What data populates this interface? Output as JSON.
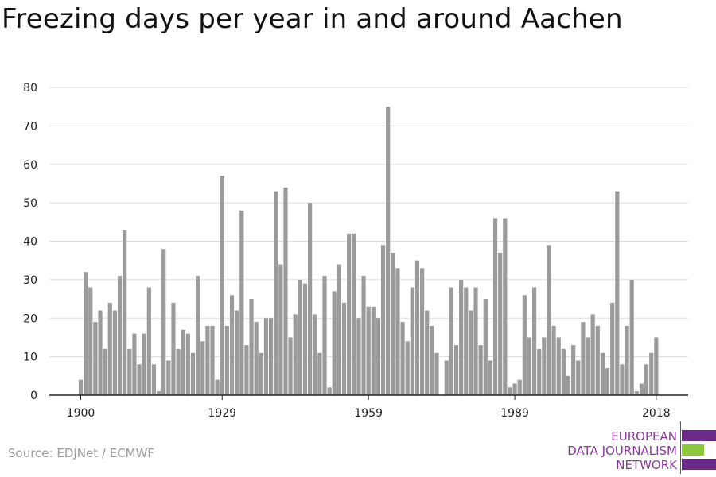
{
  "title": "Freezing days per year in and around Aachen",
  "source": "Source: EDJNet / ECMWF",
  "logo": {
    "lines": [
      "EUROPEAN",
      "DATA JOURNALISM",
      "NETWORK"
    ],
    "colors": {
      "purple": "#6b2a87",
      "green": "#8dc63f"
    }
  },
  "colors": {
    "bar": "#9b9b9b",
    "grid": "#dddddd",
    "axis": "#222222"
  },
  "chart_data": {
    "type": "bar",
    "title": "Freezing days per year in and around Aachen",
    "xlabel": "",
    "ylabel": "",
    "ylim": [
      0,
      80
    ],
    "yticks": [
      0,
      10,
      20,
      30,
      40,
      50,
      60,
      70,
      80
    ],
    "xticks": [
      "1900",
      "1929",
      "1959",
      "1989",
      "2018"
    ],
    "grid": true,
    "categories": [
      1900,
      1901,
      1902,
      1903,
      1904,
      1905,
      1906,
      1907,
      1908,
      1909,
      1910,
      1911,
      1912,
      1913,
      1914,
      1915,
      1916,
      1917,
      1918,
      1919,
      1920,
      1921,
      1922,
      1923,
      1924,
      1925,
      1926,
      1927,
      1928,
      1929,
      1930,
      1931,
      1932,
      1933,
      1934,
      1935,
      1936,
      1937,
      1938,
      1939,
      1940,
      1941,
      1942,
      1943,
      1944,
      1945,
      1946,
      1947,
      1948,
      1949,
      1950,
      1951,
      1952,
      1953,
      1954,
      1955,
      1956,
      1957,
      1958,
      1959,
      1960,
      1961,
      1962,
      1963,
      1964,
      1965,
      1966,
      1967,
      1968,
      1969,
      1970,
      1971,
      1972,
      1973,
      1974,
      1975,
      1976,
      1977,
      1978,
      1979,
      1980,
      1981,
      1982,
      1983,
      1984,
      1985,
      1986,
      1987,
      1988,
      1989,
      1990,
      1991,
      1992,
      1993,
      1994,
      1995,
      1996,
      1997,
      1998,
      1999,
      2000,
      2001,
      2002,
      2003,
      2004,
      2005,
      2006,
      2007,
      2008,
      2009,
      2010,
      2011,
      2012,
      2013,
      2014,
      2015,
      2016,
      2017,
      2018
    ],
    "values": [
      4,
      32,
      28,
      19,
      22,
      12,
      24,
      22,
      31,
      43,
      12,
      16,
      8,
      16,
      28,
      8,
      1,
      38,
      9,
      24,
      12,
      17,
      16,
      11,
      31,
      14,
      18,
      18,
      4,
      57,
      18,
      26,
      22,
      48,
      13,
      25,
      19,
      11,
      20,
      20,
      53,
      34,
      54,
      15,
      21,
      30,
      29,
      50,
      21,
      11,
      31,
      2,
      27,
      34,
      24,
      42,
      42,
      20,
      31,
      23,
      23,
      20,
      39,
      75,
      37,
      33,
      19,
      14,
      28,
      35,
      33,
      22,
      18,
      11,
      0,
      9,
      28,
      13,
      30,
      28,
      22,
      28,
      13,
      25,
      9,
      46,
      37,
      46,
      2,
      3,
      4,
      26,
      15,
      28,
      12,
      15,
      39,
      18,
      15,
      12,
      5,
      13,
      9,
      19,
      15,
      21,
      18,
      11,
      7,
      24,
      53,
      8,
      18,
      30,
      1,
      3,
      8,
      11,
      15
    ]
  }
}
